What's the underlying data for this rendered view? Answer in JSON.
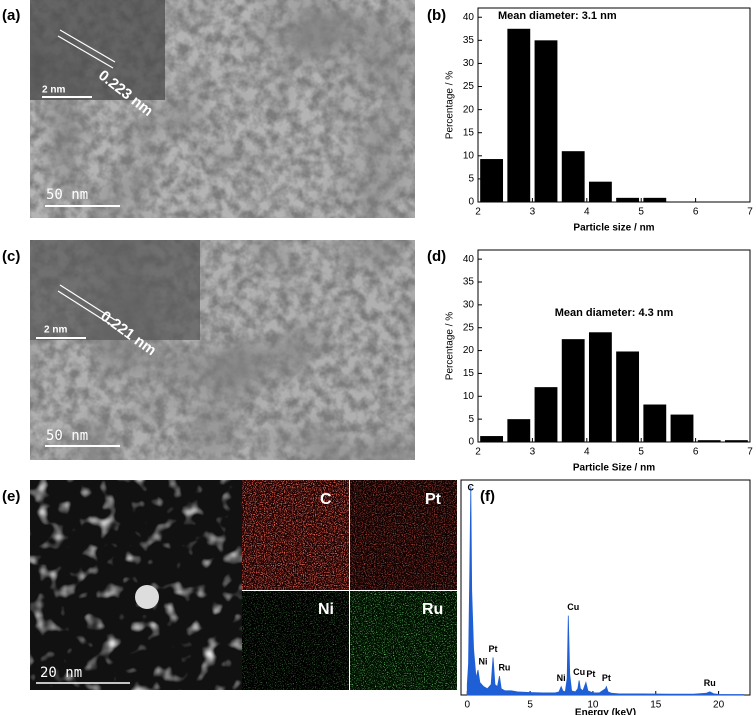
{
  "panels": {
    "a": "(a)",
    "b": "(b)",
    "c": "(c)",
    "d": "(d)",
    "e": "(e)",
    "f": "(f)"
  },
  "images": {
    "a": {
      "lattice": "0.223 nm",
      "inset_scale": "2 nm",
      "scale": "50 nm"
    },
    "c": {
      "lattice": "0.221 nm",
      "inset_scale": "2 nm",
      "scale": "50 nm"
    },
    "e": {
      "scale": "20 nm",
      "maps": [
        "C",
        "Pt",
        "Ni",
        "Ru"
      ]
    }
  },
  "chart_data": [
    {
      "type": "histogram",
      "annotation": "Mean diameter: 3.1 nm",
      "xlabel": "Particle size / nm",
      "ylabel": "Percentage / %",
      "bins": [
        2,
        2.5,
        3,
        3.5,
        4,
        4.5,
        5,
        5.5
      ],
      "values": [
        9.3,
        37.5,
        35,
        11,
        4.4,
        0.9,
        0.9
      ],
      "color": "#000000",
      "xlim": [
        2,
        7
      ],
      "xticks": [
        2,
        3,
        4,
        5,
        6,
        7
      ],
      "ylim": [
        0,
        42
      ],
      "yticks": [
        0,
        5,
        10,
        15,
        20,
        25,
        30,
        35,
        40
      ]
    },
    {
      "type": "histogram",
      "annotation": "Mean diameter: 4.3 nm",
      "xlabel": "Particle Size / nm",
      "ylabel": "Percentage / %",
      "bins": [
        2,
        2.5,
        3,
        3.5,
        4,
        4.5,
        5,
        5.5,
        6,
        6.5,
        7
      ],
      "values": [
        1.3,
        5,
        12,
        22.5,
        24,
        19.8,
        8.2,
        6,
        0.4,
        0.4
      ],
      "color": "#000000",
      "xlim": [
        2,
        7
      ],
      "xticks": [
        2,
        3,
        4,
        5,
        6,
        7
      ],
      "ylim": [
        0,
        42
      ],
      "yticks": [
        0,
        5,
        10,
        15,
        20,
        25,
        30,
        35,
        40
      ]
    },
    {
      "type": "area",
      "xlabel": "Energy (keV)",
      "color": "#1f5fd6",
      "x": [
        0,
        0.1,
        0.2,
        0.28,
        0.35,
        0.5,
        0.7,
        0.85,
        1.0,
        1.3,
        1.6,
        1.9,
        2.05,
        2.2,
        2.4,
        2.56,
        2.7,
        3.0,
        3.5,
        4,
        5,
        6,
        7,
        7.3,
        7.47,
        7.6,
        7.8,
        7.95,
        8.04,
        8.15,
        8.3,
        8.6,
        8.8,
        8.9,
        9.0,
        9.2,
        9.44,
        9.6,
        10,
        10.5,
        11.0,
        11.07,
        11.2,
        11.5,
        12,
        14,
        16,
        18,
        19,
        19.3,
        19.6,
        20,
        22
      ],
      "values": [
        5,
        15,
        60,
        100,
        50,
        22,
        8,
        12,
        6,
        4,
        3,
        5,
        18,
        5,
        4,
        9,
        3,
        2,
        2,
        1.5,
        1.2,
        1,
        1,
        1.5,
        4,
        2,
        1.5,
        8,
        38,
        10,
        2,
        1.5,
        3,
        7,
        3,
        2,
        6,
        2,
        1,
        1,
        3,
        4,
        1.5,
        0.8,
        0.6,
        0.5,
        0.4,
        0.4,
        0.8,
        1.5,
        0.6,
        0.3,
        0.2
      ],
      "peaks": [
        {
          "text": "C",
          "x": 0.28
        },
        {
          "text": "Ni",
          "x": 0.85
        },
        {
          "text": "Pt",
          "x": 2.05
        },
        {
          "text": "Ru",
          "x": 2.56
        },
        {
          "text": "Ni",
          "x": 7.47
        },
        {
          "text": "Cu",
          "x": 8.04
        },
        {
          "text": "Cu",
          "x": 8.9
        },
        {
          "text": "Pt",
          "x": 9.44
        },
        {
          "text": "Pt",
          "x": 11.07
        },
        {
          "text": "Ru",
          "x": 19.3
        }
      ],
      "xlim": [
        -0.5,
        22.5
      ],
      "xticks": [
        0,
        5,
        10,
        15,
        20
      ],
      "ylim": [
        0,
        103
      ]
    }
  ]
}
